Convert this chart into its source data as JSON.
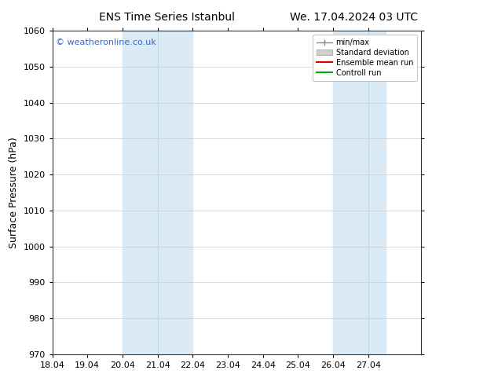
{
  "title_left": "ENS Time Series Istanbul",
  "title_right": "We. 17.04.2024 03 UTC",
  "ylabel": "Surface Pressure (hPa)",
  "ylim": [
    970,
    1060
  ],
  "yticks": [
    970,
    980,
    990,
    1000,
    1010,
    1020,
    1030,
    1040,
    1050,
    1060
  ],
  "xlim": [
    0,
    10.5
  ],
  "xtick_labels": [
    "18.04",
    "19.04",
    "20.04",
    "21.04",
    "22.04",
    "23.04",
    "24.04",
    "25.04",
    "26.04",
    "27.04"
  ],
  "xtick_positions": [
    0,
    1,
    2,
    3,
    4,
    5,
    6,
    7,
    8,
    9
  ],
  "shaded_bands": [
    {
      "xmin": 2.0,
      "xmax": 2.5
    },
    {
      "xmin": 2.5,
      "xmax": 4.0
    },
    {
      "xmin": 8.0,
      "xmax": 9.0
    },
    {
      "xmin": 9.0,
      "xmax": 9.5
    }
  ],
  "band_colors": [
    "#daeaf7",
    "#daeaf7",
    "#daeaf7",
    "#daeaf7"
  ],
  "band_dividers": [
    2.5,
    9.0
  ],
  "band_color": "#daeaf7",
  "band_divider_color": "#c0d8ef",
  "watermark": "© weatheronline.co.uk",
  "watermark_color": "#3366cc",
  "bg_color": "#ffffff",
  "plot_bg_color": "#ffffff",
  "grid_color": "#cccccc",
  "title_fontsize": 10,
  "tick_fontsize": 8,
  "ylabel_fontsize": 9,
  "watermark_fontsize": 8,
  "legend_entries": [
    {
      "label": "min/max",
      "color": "#888888",
      "lw": 1.0
    },
    {
      "label": "Standard deviation",
      "color": "#bbbbbb",
      "lw": 5
    },
    {
      "label": "Ensemble mean run",
      "color": "#dd0000",
      "lw": 1.5
    },
    {
      "label": "Controll run",
      "color": "#00aa00",
      "lw": 1.5
    }
  ]
}
